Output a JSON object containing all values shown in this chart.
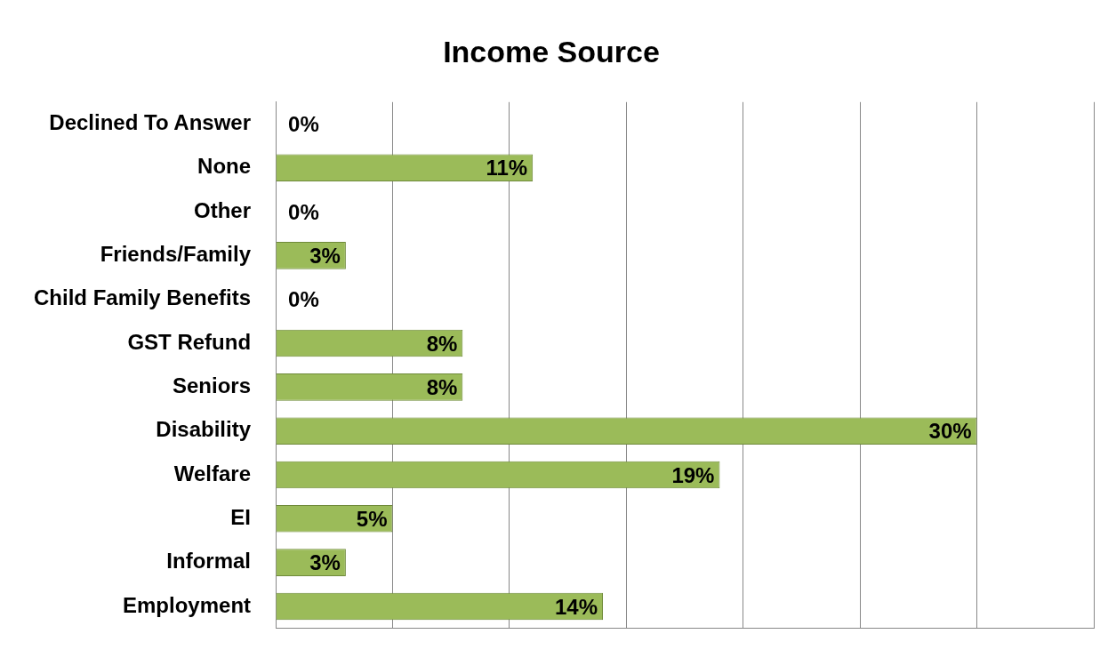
{
  "chart_data": {
    "type": "bar",
    "orientation": "horizontal",
    "title": "Income Source",
    "categories": [
      "Declined To Answer",
      "None",
      "Other",
      "Friends/Family",
      "Child Family Benefits",
      "GST Refund",
      "Seniors",
      "Disability",
      "Welfare",
      "EI",
      "Informal",
      "Employment"
    ],
    "values": [
      0,
      11,
      0,
      3,
      0,
      8,
      8,
      30,
      19,
      5,
      3,
      14
    ],
    "value_labels": [
      "0%",
      "11%",
      "0%",
      "3%",
      "0%",
      "8%",
      "8%",
      "30%",
      "19%",
      "5%",
      "3%",
      "14%"
    ],
    "color": "#9bbb59",
    "xlim": [
      0,
      35
    ],
    "xticks": [
      {
        "value": 0,
        "label": null
      },
      {
        "value": 5,
        "label": null
      },
      {
        "value": 10,
        "label": null
      },
      {
        "value": 15,
        "label": null
      },
      {
        "value": 20,
        "label": null
      },
      {
        "value": 25,
        "label": null
      },
      {
        "value": 30,
        "label": null
      },
      {
        "value": 35,
        "label": null
      }
    ],
    "grid": "x",
    "tick_labels": "y",
    "legend": false
  }
}
